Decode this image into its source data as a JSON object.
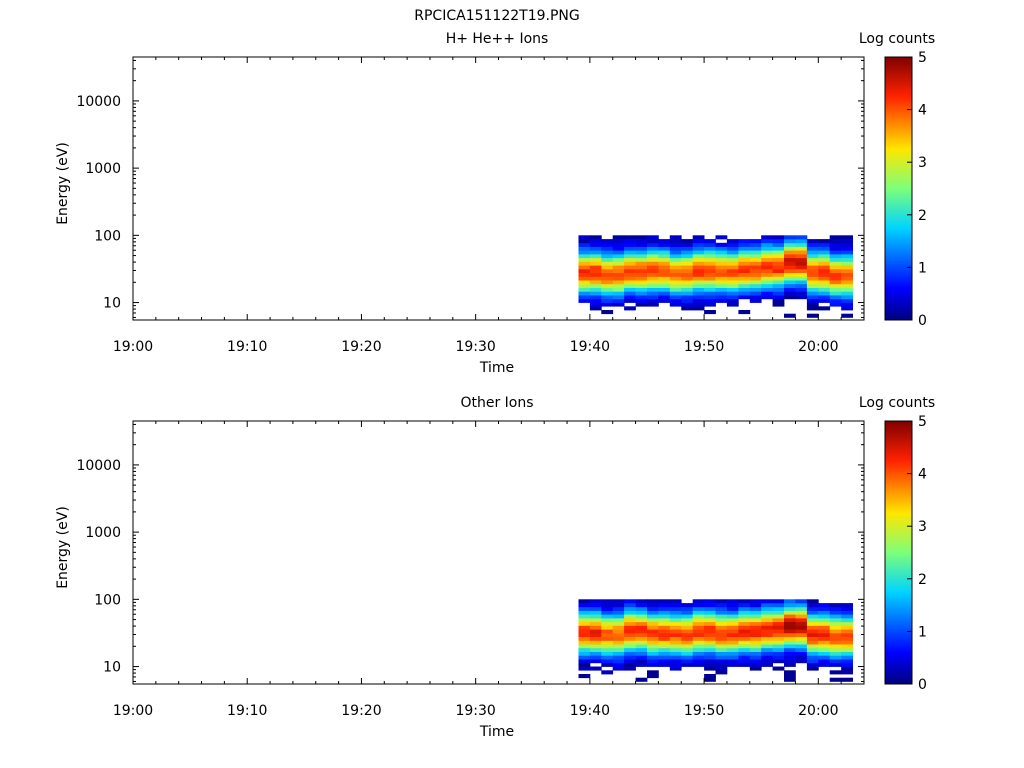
{
  "figure_title": "RPCICA151122T19.PNG",
  "chart_data": [
    {
      "type": "heatmap",
      "title": "H+ He++ Ions",
      "xlabel": "Time",
      "ylabel": "Energy (eV)",
      "x_tick_labels": [
        "19:00",
        "19:10",
        "19:20",
        "19:30",
        "19:40",
        "19:50",
        "20:00"
      ],
      "x_range_minutes_after_19_00": [
        0,
        64
      ],
      "y_scale": "log",
      "y_range": [
        5.5,
        45000
      ],
      "y_tick_labels": [
        "10",
        "100",
        "1000",
        "10000"
      ],
      "colorbar_label": "Log counts",
      "colorbar_range": [
        0,
        5
      ],
      "colorbar_ticks": [
        "0",
        "1",
        "2",
        "3",
        "4",
        "5"
      ],
      "colormap": "rainbow",
      "data_time_range": [
        "19:39",
        "20:03"
      ],
      "energy_peak_ev_by_time": [
        {
          "time": "19:40",
          "peak_ev": 28,
          "max_log_counts": 4.3
        },
        {
          "time": "19:42",
          "peak_ev": 26,
          "max_log_counts": 4.1
        },
        {
          "time": "19:44",
          "peak_ev": 29,
          "max_log_counts": 4.2
        },
        {
          "time": "19:46",
          "peak_ev": 30,
          "max_log_counts": 4.1
        },
        {
          "time": "19:48",
          "peak_ev": 27,
          "max_log_counts": 4.0
        },
        {
          "time": "19:50",
          "peak_ev": 30,
          "max_log_counts": 4.2
        },
        {
          "time": "19:52",
          "peak_ev": 29,
          "max_log_counts": 4.1
        },
        {
          "time": "19:54",
          "peak_ev": 31,
          "max_log_counts": 4.2
        },
        {
          "time": "19:56",
          "peak_ev": 34,
          "max_log_counts": 4.3
        },
        {
          "time": "19:58",
          "peak_ev": 40,
          "max_log_counts": 4.6
        },
        {
          "time": "20:00",
          "peak_ev": 28,
          "max_log_counts": 4.2
        },
        {
          "time": "20:02",
          "peak_ev": 25,
          "max_log_counts": 4.1
        }
      ]
    },
    {
      "type": "heatmap",
      "title": "Other Ions",
      "xlabel": "Time",
      "ylabel": "Energy (eV)",
      "x_tick_labels": [
        "19:00",
        "19:10",
        "19:20",
        "19:30",
        "19:40",
        "19:50",
        "20:00"
      ],
      "x_range_minutes_after_19_00": [
        0,
        64
      ],
      "y_scale": "log",
      "y_range": [
        5.5,
        45000
      ],
      "y_tick_labels": [
        "10",
        "100",
        "1000",
        "10000"
      ],
      "colorbar_label": "Log counts",
      "colorbar_range": [
        0,
        5
      ],
      "colorbar_ticks": [
        "0",
        "1",
        "2",
        "3",
        "4",
        "5"
      ],
      "colormap": "rainbow",
      "data_time_range": [
        "19:39",
        "20:03"
      ],
      "energy_peak_ev_by_time": [
        {
          "time": "19:40",
          "peak_ev": 32,
          "max_log_counts": 4.3
        },
        {
          "time": "19:42",
          "peak_ev": 30,
          "max_log_counts": 4.0
        },
        {
          "time": "19:44",
          "peak_ev": 34,
          "max_log_counts": 4.3
        },
        {
          "time": "19:46",
          "peak_ev": 31,
          "max_log_counts": 4.2
        },
        {
          "time": "19:48",
          "peak_ev": 30,
          "max_log_counts": 4.1
        },
        {
          "time": "19:50",
          "peak_ev": 33,
          "max_log_counts": 4.3
        },
        {
          "time": "19:52",
          "peak_ev": 31,
          "max_log_counts": 4.2
        },
        {
          "time": "19:54",
          "peak_ev": 33,
          "max_log_counts": 4.3
        },
        {
          "time": "19:56",
          "peak_ev": 36,
          "max_log_counts": 4.4
        },
        {
          "time": "19:58",
          "peak_ev": 40,
          "max_log_counts": 4.8
        },
        {
          "time": "20:00",
          "peak_ev": 30,
          "max_log_counts": 4.3
        },
        {
          "time": "20:02",
          "peak_ev": 28,
          "max_log_counts": 4.1
        }
      ]
    }
  ]
}
